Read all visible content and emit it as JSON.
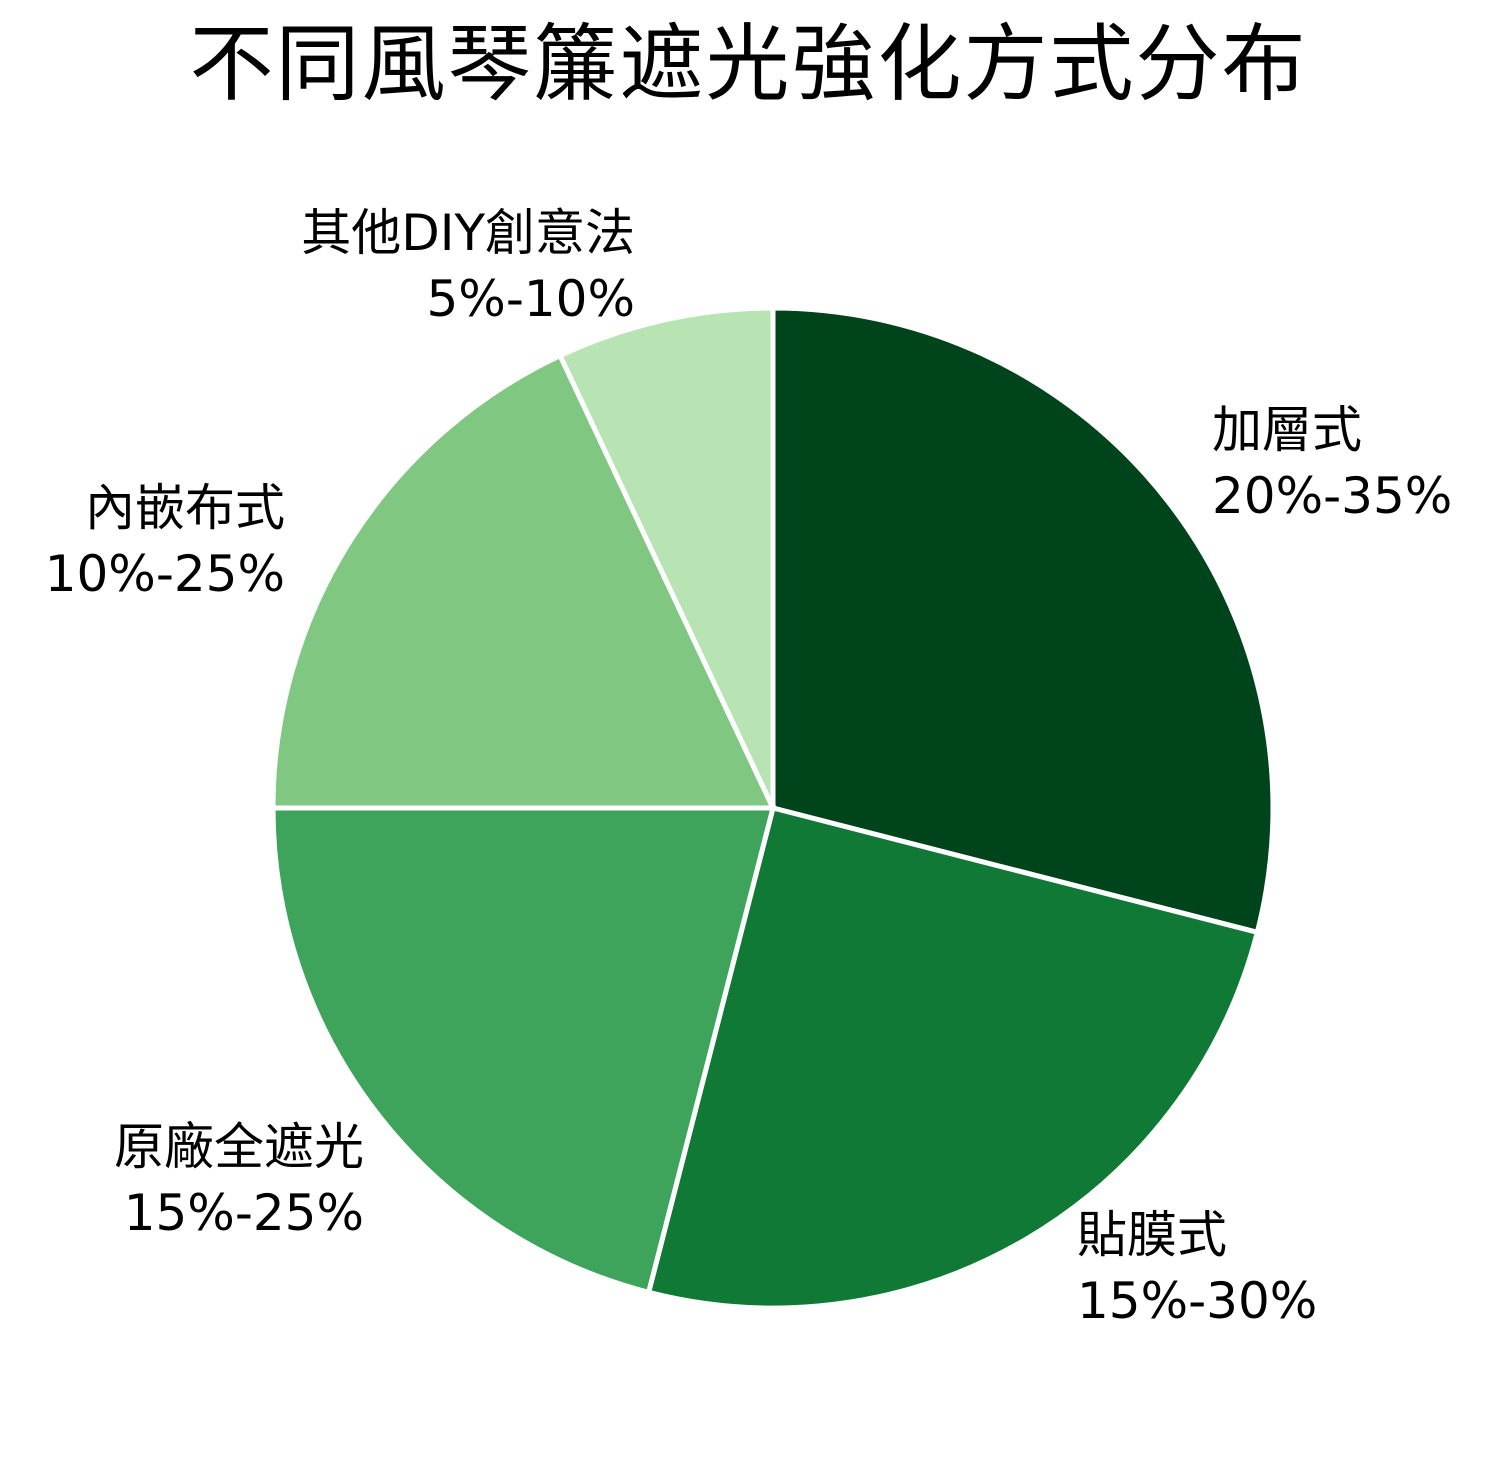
{
  "chart_data": {
    "type": "pie",
    "title": "不同風琴簾遮光強化方式分布",
    "slices": [
      {
        "label": "加層式",
        "range_text": "20%-35%",
        "value": 29,
        "color": "#00441b"
      },
      {
        "label": "貼膜式",
        "range_text": "15%-30%",
        "value": 25,
        "color": "#107936"
      },
      {
        "label": "原廠全遮光",
        "range_text": "15%-25%",
        "value": 21,
        "color": "#3ea45b"
      },
      {
        "label": "內嵌布式",
        "range_text": "10%-25%",
        "value": 18,
        "color": "#80c782"
      },
      {
        "label": "其他DIY創意法",
        "range_text": "5%-10%",
        "value": 7,
        "color": "#b8e3b3"
      }
    ],
    "start_angle_deg": 0,
    "direction": "clockwise",
    "legend": "none",
    "labels_position": "outside"
  }
}
